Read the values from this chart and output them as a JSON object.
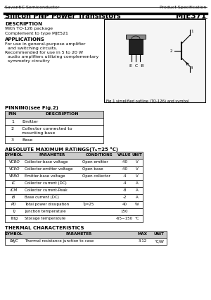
{
  "company": "SavantiC Semiconductor",
  "product_spec": "Product Specification",
  "title": "Silicon PNP Power Transistors",
  "part_number": "MJE371",
  "description_title": "DESCRIPTION",
  "description_lines": [
    "With TO-126 package",
    "Complement to type MJE521"
  ],
  "applications_title": "APPLICATIONS",
  "applications_lines": [
    "For use in general-purpose amplifier",
    "  and switching circuits.",
    "Recommended for use in 5 to 20 W",
    "  audio amplifiers utilizing complementary",
    "  symmetry circuitry"
  ],
  "pinning_title": "PINNING(see Fig.2)",
  "pin_headers": [
    "PIN",
    "DESCRIPTION"
  ],
  "pin_rows": [
    [
      "1",
      "Emitter"
    ],
    [
      "2",
      "Collector connected to\nmounting base"
    ],
    [
      "3",
      "Base"
    ]
  ],
  "fig_caption": "Fig.1 simplified outline (TO-126) and symbol",
  "abs_title": "ABSOLUTE MAXIMUM RATINGS(Tₕ=25 °C)",
  "abs_headers": [
    "SYMBOL",
    "PARAMETER",
    "CONDITIONS",
    "VALUE",
    "UNIT"
  ],
  "abs_symbols": [
    "VCBO",
    "VCEO",
    "VEBO",
    "IC",
    "ICM",
    "IB",
    "PD",
    "Tj",
    "Tstg"
  ],
  "abs_params": [
    "Collector-base voltage",
    "Collector-emitter voltage",
    "Emitter-base voltage",
    "Collector current (DC)",
    "Collector current-Peak",
    "Base current (DC)",
    "Total power dissipation",
    "Junction temperature",
    "Storage temperature"
  ],
  "abs_conds": [
    "Open emitter",
    "Open base",
    "Open collector",
    "",
    "",
    "",
    "Tj=25",
    "",
    ""
  ],
  "abs_vals": [
    "-40",
    "-40",
    "-4",
    "-4",
    "-8",
    "-2",
    "40",
    "150",
    "-65~150"
  ],
  "abs_units": [
    "V",
    "V",
    "V",
    "A",
    "A",
    "A",
    "W",
    "",
    "°C"
  ],
  "thermal_title": "THERMAL CHARACTERISTICS",
  "thermal_headers": [
    "SYMBOL",
    "PARAMETER",
    "MAX",
    "UNIT"
  ],
  "thermal_sym": "RθJC",
  "thermal_param": "Thermal resistance junction to case",
  "thermal_max": "3.12",
  "thermal_unit": "°C/W",
  "bg_color": "#ffffff",
  "table_header_bg": "#cccccc",
  "line_color": "#000000"
}
